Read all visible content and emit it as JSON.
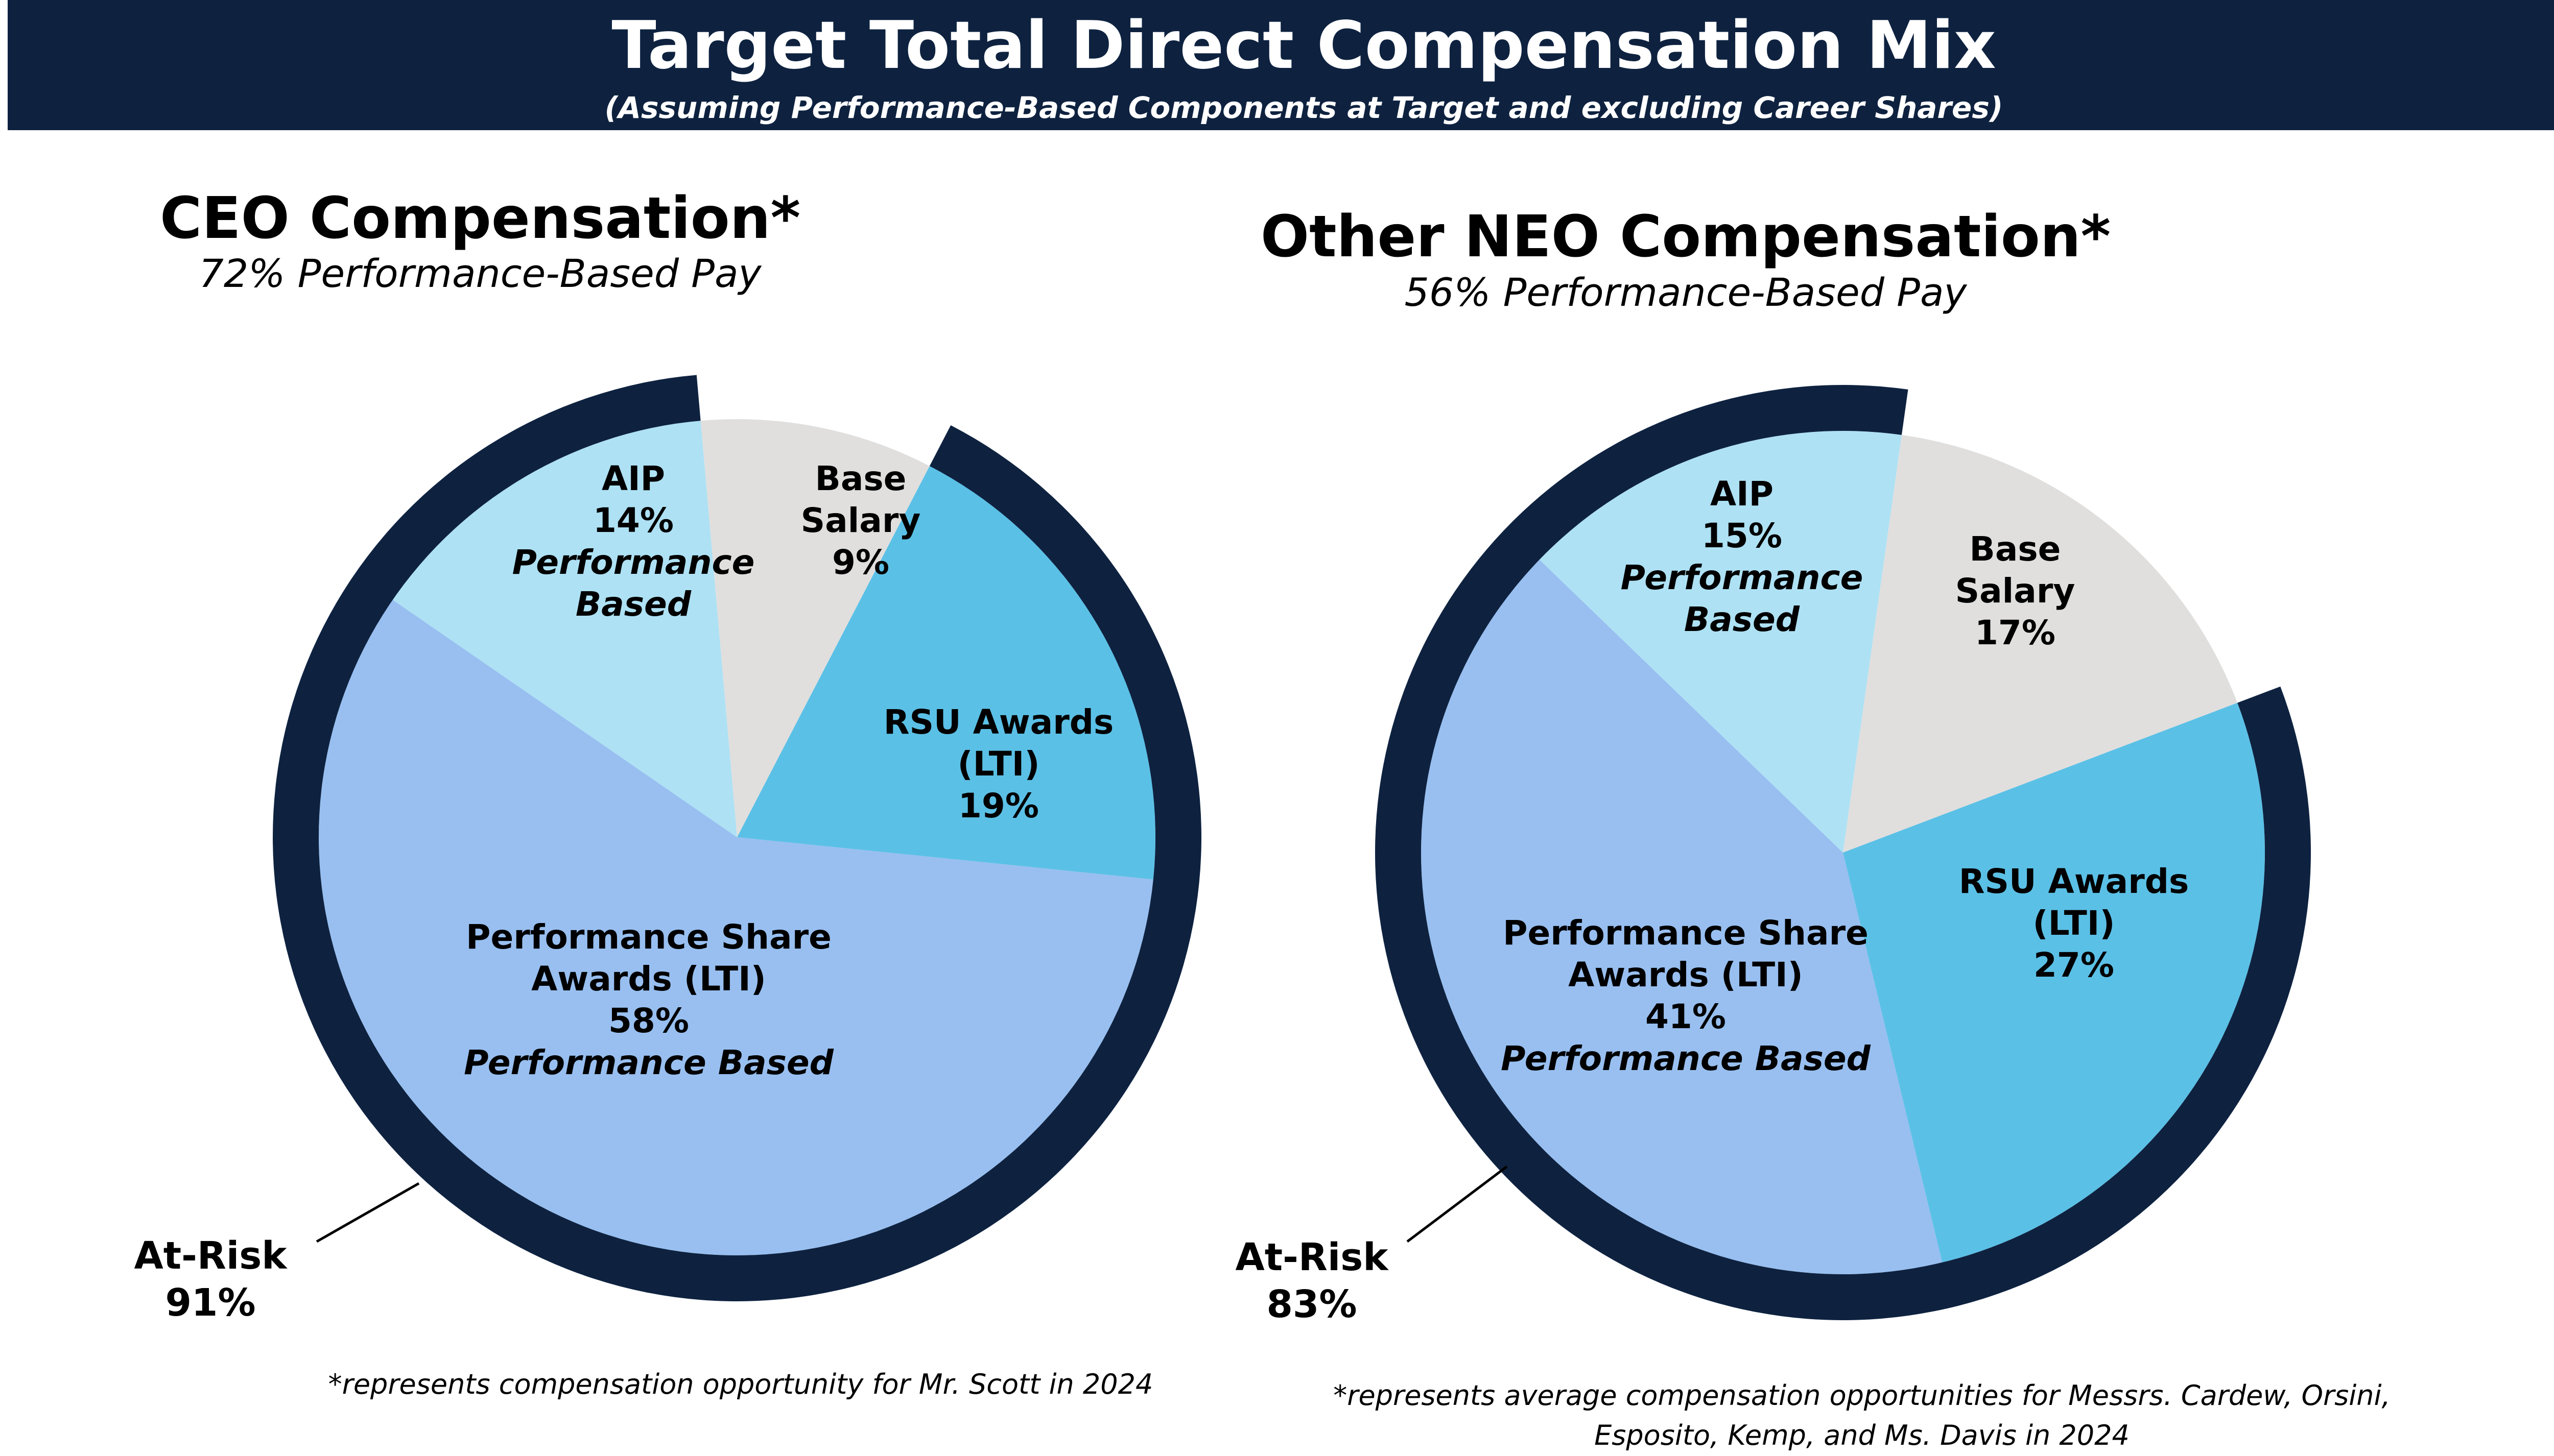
{
  "header": {
    "title": "Target Total Direct Compensation Mix",
    "subtitle": "(Assuming Performance-Based Components at Target and excluding Career Shares)"
  },
  "colors": {
    "navy": "#0e2240",
    "base_salary": "#e0dfde",
    "rsu": "#5bc0e6",
    "psa": "#98bff0",
    "aip": "#aee1f4"
  },
  "chart_data": [
    {
      "type": "pie",
      "title": "CEO Compensation*",
      "subtitle": "72% Performance-Based Pay",
      "slices": [
        {
          "name": "Base Salary",
          "value": 9,
          "label_lines": [
            "Base",
            "Salary",
            "9%"
          ],
          "italic_lines": [],
          "color": "#e0dfde",
          "at_risk": false
        },
        {
          "name": "RSU Awards (LTI)",
          "value": 19,
          "label_lines": [
            "RSU Awards",
            "(LTI)",
            "19%"
          ],
          "italic_lines": [],
          "color": "#5bc0e6",
          "at_risk": true
        },
        {
          "name": "Performance Share Awards (LTI)",
          "value": 58,
          "label_lines": [
            "Performance Share",
            "Awards (LTI)",
            "58%",
            "Performance Based"
          ],
          "italic_lines": [
            3
          ],
          "color": "#98bff0",
          "at_risk": true
        },
        {
          "name": "AIP",
          "value": 14,
          "label_lines": [
            "AIP",
            "14%",
            "Performance",
            "Based"
          ],
          "italic_lines": [
            2,
            3
          ],
          "color": "#aee1f4",
          "at_risk": true
        }
      ],
      "at_risk": {
        "label": "At-Risk",
        "value": "91%",
        "percent": 91
      },
      "footnote": "*represents compensation opportunity for Mr. Scott in 2024"
    },
    {
      "type": "pie",
      "title": "Other NEO Compensation*",
      "subtitle": "56% Performance-Based Pay",
      "slices": [
        {
          "name": "Base Salary",
          "value": 17,
          "label_lines": [
            "Base",
            "Salary",
            "17%"
          ],
          "italic_lines": [],
          "color": "#e0dfde",
          "at_risk": false
        },
        {
          "name": "RSU Awards (LTI)",
          "value": 27,
          "label_lines": [
            "RSU Awards",
            "(LTI)",
            "27%"
          ],
          "italic_lines": [],
          "color": "#5bc0e6",
          "at_risk": true
        },
        {
          "name": "Performance Share Awards (LTI)",
          "value": 41,
          "label_lines": [
            "Performance Share",
            "Awards (LTI)",
            "41%",
            "Performance Based"
          ],
          "italic_lines": [
            3
          ],
          "color": "#98bff0",
          "at_risk": true
        },
        {
          "name": "AIP",
          "value": 15,
          "label_lines": [
            "AIP",
            "15%",
            "Performance",
            "Based"
          ],
          "italic_lines": [
            2,
            3
          ],
          "color": "#aee1f4",
          "at_risk": true
        }
      ],
      "at_risk": {
        "label": "At-Risk",
        "value": "83%",
        "percent": 83
      },
      "footnote_lines": [
        "*represents average compensation opportunities for Messrs. Cardew, Orsini,",
        "Esposito, Kemp, and Ms. Davis in 2024"
      ]
    }
  ]
}
